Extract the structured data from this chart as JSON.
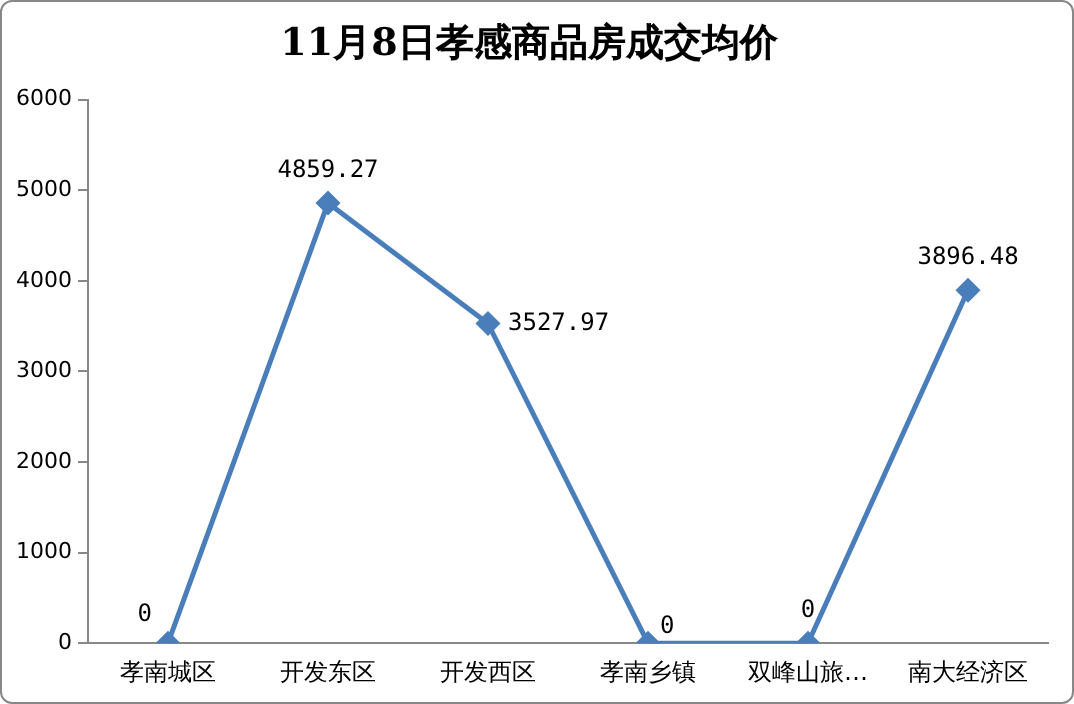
{
  "chart_data": {
    "type": "line",
    "title": "11月8日孝感商品房成交均价",
    "categories": [
      "孝南城区",
      "开发东区",
      "开发西区",
      "孝南乡镇",
      "双峰山旅…",
      "南大经济区"
    ],
    "values": [
      0,
      4859.27,
      3527.97,
      0,
      0,
      3896.48
    ],
    "value_labels": [
      "0",
      "4859.27",
      "3527.97",
      "0",
      "0",
      "3896.48"
    ],
    "color": "#4a7ebb",
    "marker": "diamond",
    "line_style": "solid",
    "ylim": [
      0,
      6000
    ],
    "yticks": [
      0,
      1000,
      2000,
      3000,
      4000,
      5000,
      6000
    ],
    "grid": false,
    "legend": false
  }
}
